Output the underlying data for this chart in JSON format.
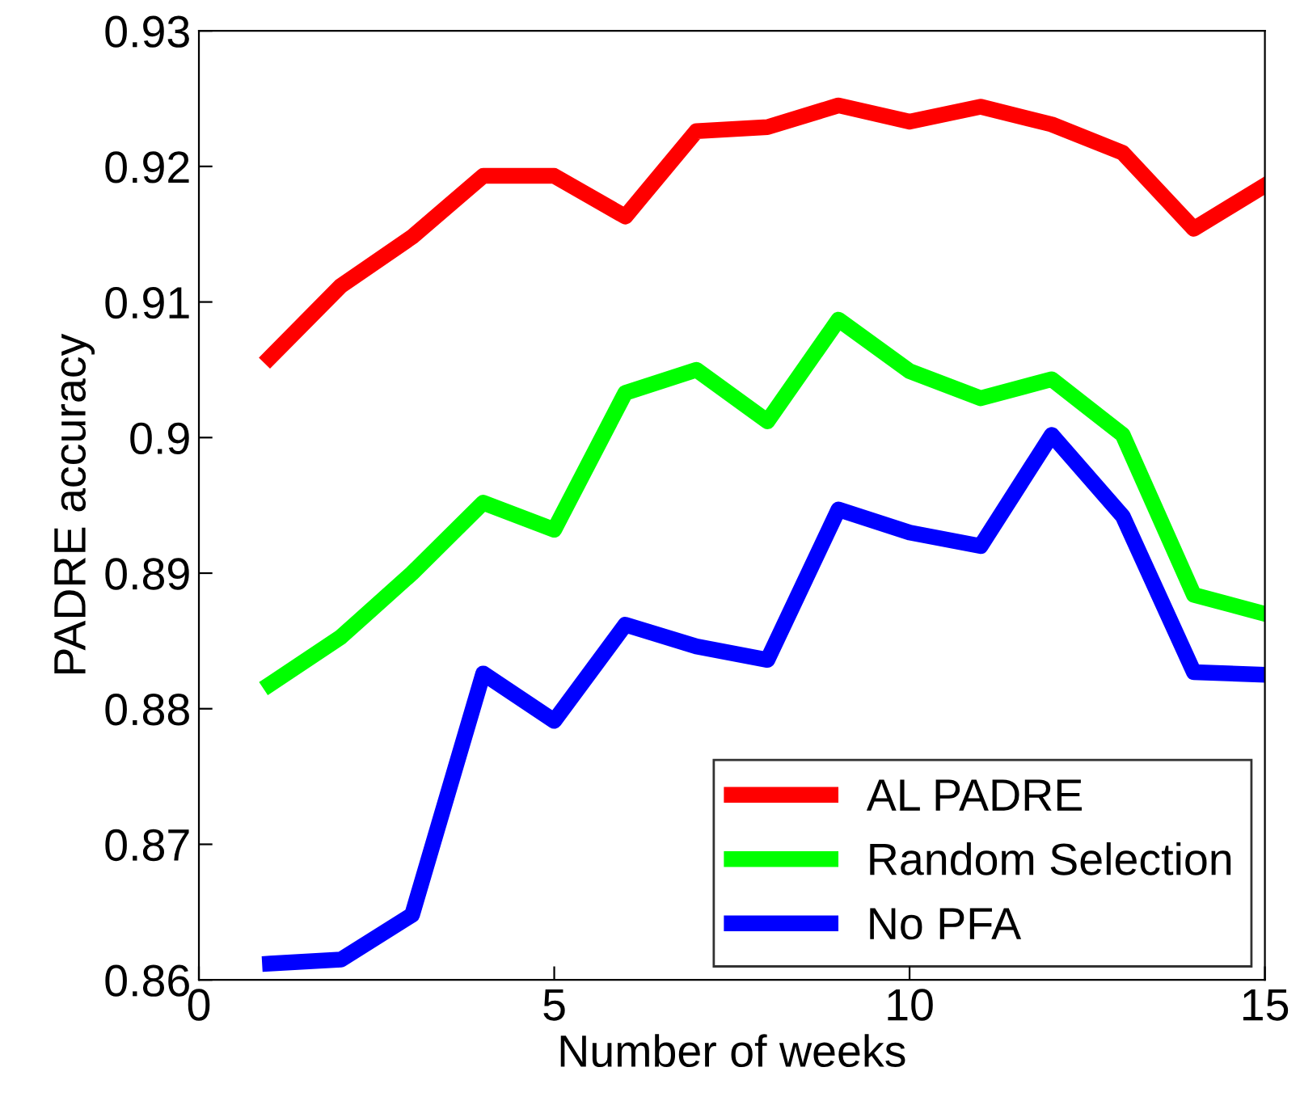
{
  "chart_data": {
    "type": "line",
    "xlabel": "Number of weeks",
    "ylabel": "PADRE accuracy",
    "x": [
      1,
      2,
      3,
      4,
      5,
      6,
      7,
      8,
      9,
      10,
      11,
      12,
      13,
      14,
      15
    ],
    "series": [
      {
        "name": "AL PADRE",
        "color": "#ff0000",
        "values": [
          0.9059,
          0.9112,
          0.9148,
          0.9193,
          0.9193,
          0.9163,
          0.9226,
          0.9229,
          0.9245,
          0.9233,
          0.9244,
          0.9231,
          0.921,
          0.9154,
          0.9186
        ]
      },
      {
        "name": "Random Selection",
        "color": "#00ff00",
        "values": [
          0.8818,
          0.8853,
          0.89,
          0.8952,
          0.8932,
          0.9033,
          0.905,
          0.9012,
          0.9087,
          0.9049,
          0.9029,
          0.9043,
          0.9002,
          0.8884,
          0.887
        ]
      },
      {
        "name": "No PFA",
        "color": "#0000ff",
        "values": [
          0.8612,
          0.8615,
          0.8648,
          0.8826,
          0.8791,
          0.8862,
          0.8846,
          0.8836,
          0.8947,
          0.893,
          0.892,
          0.9002,
          0.8942,
          0.8827,
          0.8825
        ]
      }
    ],
    "xlim": [
      0,
      15
    ],
    "xticks": [
      0,
      5,
      10,
      15
    ],
    "ylim": [
      0.86,
      0.93
    ],
    "yticks": [
      0.86,
      0.87,
      0.88,
      0.89,
      {
        "value": 0.9,
        "label": "0.9"
      },
      0.91,
      0.92,
      0.93
    ],
    "grid": false,
    "legend": "bottom right",
    "line_style": "solid",
    "marker": "none"
  }
}
